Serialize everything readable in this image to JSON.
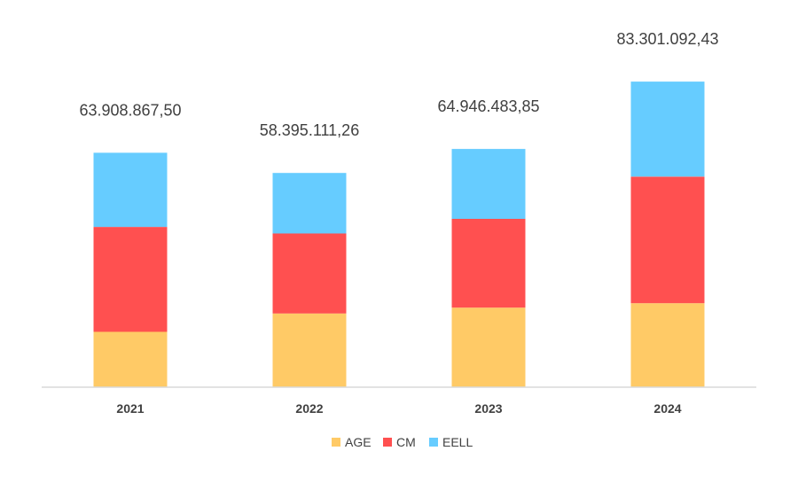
{
  "chart_data": {
    "type": "bar",
    "stacked": true,
    "categories": [
      "2021",
      "2022",
      "2023",
      "2024"
    ],
    "series": [
      {
        "name": "AGE",
        "color": "#FFCA66",
        "values": [
          15100000,
          20100000,
          21700000,
          22900000
        ]
      },
      {
        "name": "CM",
        "color": "#FF5050",
        "values": [
          28600000,
          21800000,
          24200000,
          34500000
        ]
      },
      {
        "name": "EELL",
        "color": "#66CCFF",
        "values": [
          20208867.5,
          16495111.26,
          19046483.85,
          25901092.43
        ]
      }
    ],
    "totals": [
      "63.908.867,50",
      "58.395.111,26",
      "64.946.483,85",
      "83.301.092,43"
    ],
    "ylim": [
      0,
      100000000
    ],
    "grid": false,
    "legend_position": "bottom"
  }
}
